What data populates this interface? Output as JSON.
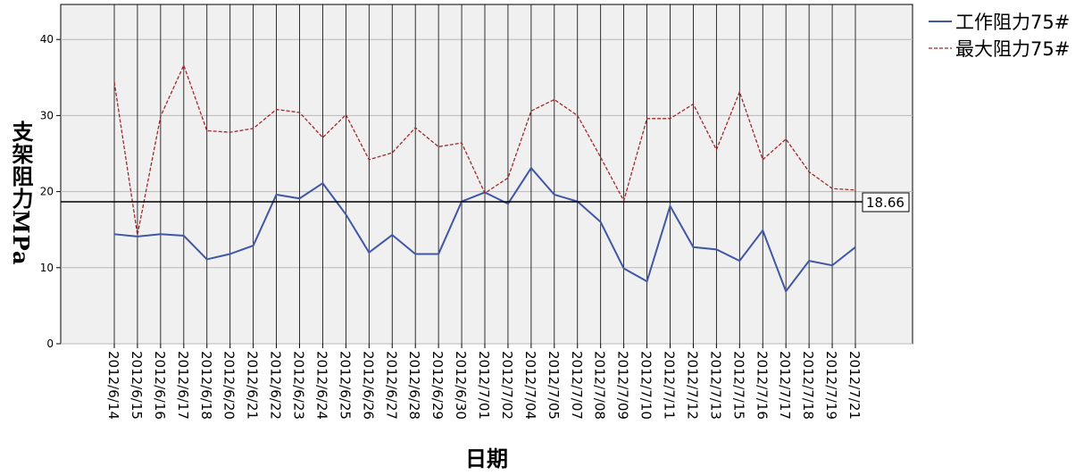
{
  "chart_data": {
    "type": "line",
    "x_label": "日期",
    "y_label": "支架阻力MPa",
    "categories": [
      "2012/6/14",
      "2012/6/15",
      "2012/6/16",
      "2012/6/17",
      "2012/6/18",
      "2012/6/20",
      "2012/6/21",
      "2012/6/22",
      "2012/6/23",
      "2012/6/24",
      "2012/6/25",
      "2012/6/26",
      "2012/6/27",
      "2012/6/28",
      "2012/6/29",
      "2012/6/30",
      "2012/7/01",
      "2012/7/02",
      "2012/7/04",
      "2012/7/05",
      "2012/7/07",
      "2012/7/08",
      "2012/7/09",
      "2012/7/10",
      "2012/7/11",
      "2012/7/12",
      "2012/7/13",
      "2012/7/15",
      "2012/7/16",
      "2012/7/17",
      "2012/7/18",
      "2012/7/19",
      "2012/7/21"
    ],
    "series": [
      {
        "name": "工作阻力75#",
        "color": "#3f57a5",
        "dashed": false,
        "values": [
          14.4,
          14.1,
          14.4,
          14.2,
          11.1,
          11.8,
          12.9,
          19.6,
          19.1,
          21.1,
          17.0,
          12.0,
          14.3,
          11.8,
          11.8,
          18.7,
          19.9,
          18.4,
          23.1,
          19.6,
          18.7,
          16.0,
          9.9,
          8.2,
          18.1,
          12.7,
          12.4,
          10.9,
          14.9,
          6.9,
          10.9,
          10.3,
          12.7
        ]
      },
      {
        "name": "最大阻力75#",
        "color": "#a0282a",
        "dashed": true,
        "values": [
          34.4,
          14.3,
          29.9,
          36.6,
          28.0,
          27.8,
          28.3,
          30.8,
          30.4,
          27.1,
          30.1,
          24.2,
          25.1,
          28.4,
          25.9,
          26.4,
          19.8,
          21.8,
          30.6,
          32.1,
          30.0,
          24.5,
          18.8,
          29.6,
          29.6,
          31.5,
          25.5,
          33.1,
          24.2,
          26.9,
          22.6,
          20.4,
          20.2
        ]
      }
    ],
    "reference_line": 18.66,
    "ylim": [
      0,
      44.6
    ],
    "yticks": [
      0,
      10,
      20,
      30,
      40
    ],
    "grid": true
  }
}
